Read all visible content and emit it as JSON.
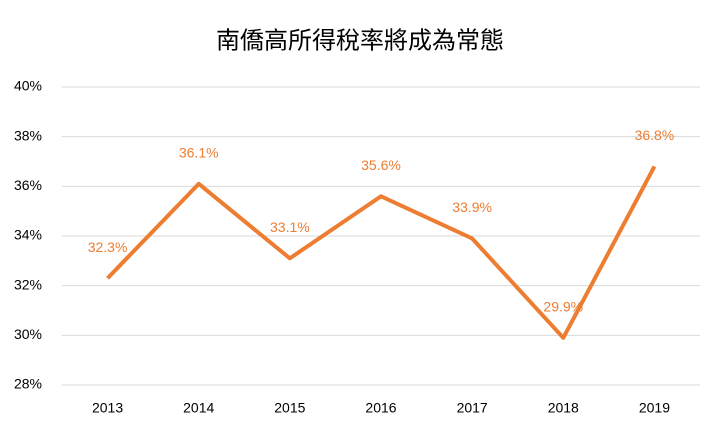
{
  "chart_data": {
    "type": "line",
    "title": "南僑高所得稅率將成為常態",
    "categories": [
      "2013",
      "2014",
      "2015",
      "2016",
      "2017",
      "2018",
      "2019"
    ],
    "series": [
      {
        "color": "#ed7d31",
        "values": [
          32.3,
          36.1,
          33.1,
          35.6,
          33.9,
          29.9,
          36.8
        ],
        "value_labels": [
          "32.3%",
          "36.1%",
          "33.1%",
          "35.6%",
          "33.9%",
          "29.9%",
          "36.8%"
        ]
      }
    ],
    "ylim": [
      28,
      40
    ],
    "yticks": [
      {
        "value": 28,
        "label": "28%"
      },
      {
        "value": 30,
        "label": "30%"
      },
      {
        "value": 32,
        "label": "32%"
      },
      {
        "value": 34,
        "label": "34%"
      },
      {
        "value": 36,
        "label": "36%"
      },
      {
        "value": 38,
        "label": "38%"
      },
      {
        "value": 40,
        "label": "40%"
      }
    ],
    "grid": true
  }
}
